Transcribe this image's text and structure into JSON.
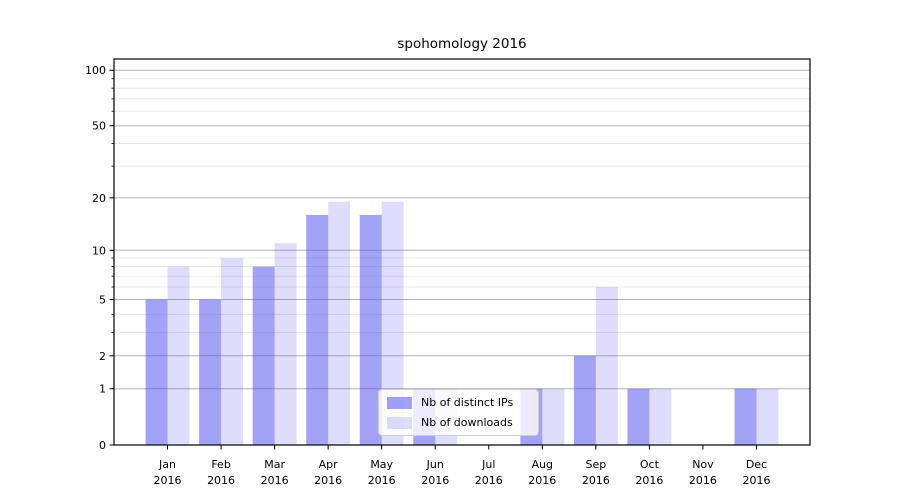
{
  "chart_data": {
    "type": "bar",
    "title": "spohomology 2016",
    "categories": [
      "Jan",
      "Feb",
      "Mar",
      "Apr",
      "May",
      "Jun",
      "Jul",
      "Aug",
      "Sep",
      "Oct",
      "Nov",
      "Dec"
    ],
    "year_label": "2016",
    "series": [
      {
        "name": "Nb of distinct IPs",
        "color": "rgba(70,70,240,0.50)",
        "values": [
          5,
          5,
          8,
          16,
          16,
          1,
          0,
          1,
          2,
          1,
          0,
          1
        ]
      },
      {
        "name": "Nb of downloads",
        "color": "rgba(70,70,240,0.18)",
        "values": [
          8,
          9,
          11,
          19,
          19,
          1,
          0,
          1,
          6,
          1,
          0,
          1
        ]
      }
    ],
    "y_scale": "log1p",
    "y_major_ticks": [
      0,
      1,
      2,
      5,
      10,
      20,
      50,
      100
    ],
    "y_minor_ticks": [
      3,
      4,
      6,
      7,
      8,
      9,
      30,
      40,
      60,
      70,
      80,
      90
    ],
    "ylim": [
      0,
      115
    ],
    "xlim_units": [
      -1,
      12
    ],
    "grid": true,
    "legend_position": "lower center",
    "colors": {
      "major_grid": "#b3b3b3",
      "minor_grid": "#e2e2e2",
      "axis": "#000000",
      "text": "#000000"
    }
  }
}
